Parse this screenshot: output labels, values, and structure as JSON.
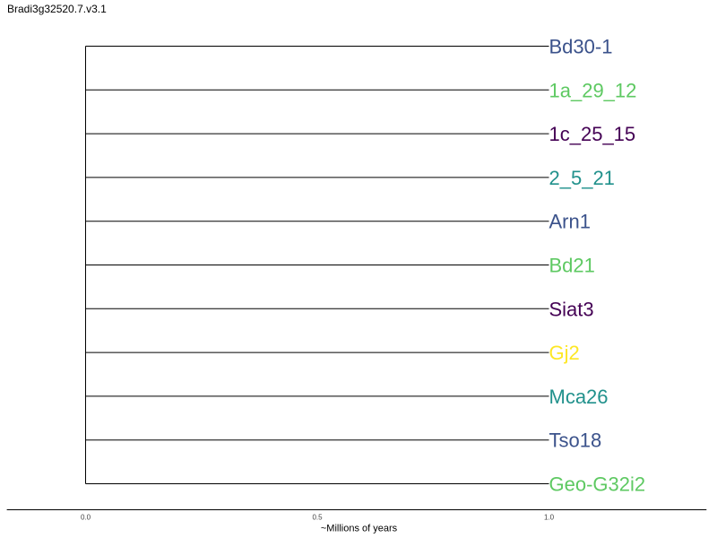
{
  "title": "Bradi3g32520.7.v3.1",
  "tree": {
    "leaves": [
      {
        "name": "Bd30-1",
        "color": "#3b528b"
      },
      {
        "name": "1a_29_12",
        "color": "#5ec962"
      },
      {
        "name": "1c_25_15",
        "color": "#440154"
      },
      {
        "name": "2_5_21",
        "color": "#21918c"
      },
      {
        "name": "Arn1",
        "color": "#3b528b"
      },
      {
        "name": "Bd21",
        "color": "#5ec962"
      },
      {
        "name": "Siat3",
        "color": "#440154"
      },
      {
        "name": "Gj2",
        "color": "#fde725"
      },
      {
        "name": "Mca26",
        "color": "#21918c"
      },
      {
        "name": "Tso18",
        "color": "#3b528b"
      },
      {
        "name": "Geo-G32i2",
        "color": "#5ec962"
      }
    ],
    "branch_length": 1.0,
    "xaxis": {
      "label": "~Millions of years",
      "ticks": [
        0.0,
        0.5,
        1.0
      ],
      "tick_labels": [
        "0.0",
        "0.5",
        "1.0"
      ],
      "range": [
        -0.17,
        1.34
      ]
    }
  }
}
